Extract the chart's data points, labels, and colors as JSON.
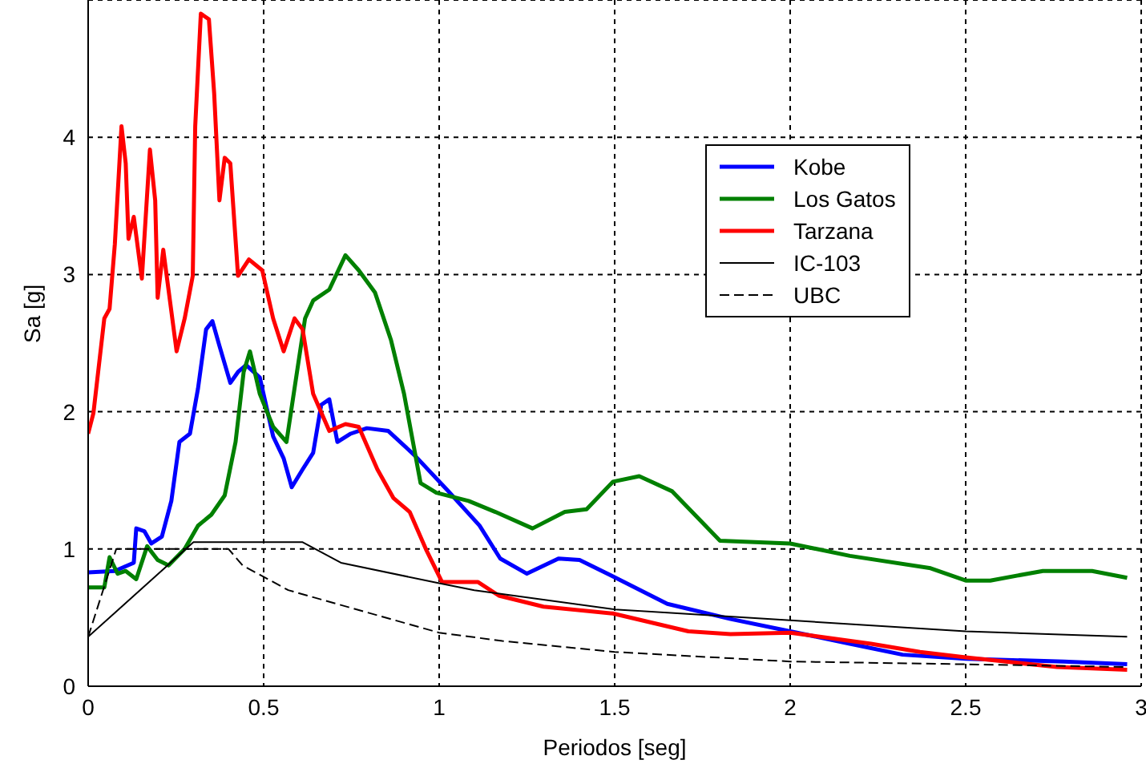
{
  "chart_data": {
    "type": "line",
    "xlabel": "Periodos [seg]",
    "ylabel": "Sa [g]",
    "xlim": [
      0,
      3
    ],
    "xticks": [
      0,
      0.5,
      1,
      1.5,
      2,
      2.5,
      3
    ],
    "ylim": [
      0,
      5
    ],
    "yticks": [
      0,
      1,
      2,
      3,
      4
    ],
    "grid": true,
    "legend": "top right",
    "marker": "none",
    "series": [
      {
        "name": "Kobe",
        "color": "#0000ff",
        "line_style": "solid",
        "x": [
          0,
          0.076,
          0.13,
          0.137,
          0.16,
          0.18,
          0.21,
          0.237,
          0.26,
          0.29,
          0.313,
          0.336,
          0.354,
          0.374,
          0.405,
          0.427,
          0.45,
          0.489,
          0.527,
          0.557,
          0.58,
          0.611,
          0.641,
          0.664,
          0.687,
          0.71,
          0.748,
          0.794,
          0.855,
          0.931,
          1.023,
          1.115,
          1.174,
          1.25,
          1.34,
          1.4,
          1.495,
          1.65,
          1.83,
          2.0,
          2.17,
          2.32,
          2.5,
          2.78,
          2.96
        ],
        "values": [
          0.83,
          0.84,
          0.9,
          1.15,
          1.13,
          1.04,
          1.09,
          1.35,
          1.78,
          1.84,
          2.17,
          2.6,
          2.66,
          2.48,
          2.21,
          2.29,
          2.34,
          2.25,
          1.82,
          1.66,
          1.45,
          1.58,
          1.7,
          2.05,
          2.09,
          1.78,
          1.84,
          1.88,
          1.86,
          1.68,
          1.43,
          1.17,
          0.93,
          0.82,
          0.93,
          0.92,
          0.8,
          0.6,
          0.49,
          0.4,
          0.31,
          0.23,
          0.2,
          0.18,
          0.16
        ]
      },
      {
        "name": "Los Gatos",
        "color": "#008000",
        "line_style": "solid",
        "x": [
          0,
          0.046,
          0.061,
          0.084,
          0.107,
          0.137,
          0.168,
          0.198,
          0.229,
          0.275,
          0.313,
          0.351,
          0.389,
          0.42,
          0.443,
          0.461,
          0.489,
          0.527,
          0.565,
          0.595,
          0.618,
          0.641,
          0.687,
          0.733,
          0.771,
          0.817,
          0.863,
          0.9,
          0.947,
          0.992,
          1.084,
          1.16,
          1.266,
          1.358,
          1.42,
          1.495,
          1.57,
          1.664,
          1.8,
          2.0,
          2.17,
          2.4,
          2.5,
          2.57,
          2.72,
          2.86,
          2.96
        ],
        "values": [
          0.72,
          0.72,
          0.94,
          0.82,
          0.84,
          0.78,
          1.02,
          0.92,
          0.88,
          1.0,
          1.17,
          1.25,
          1.39,
          1.78,
          2.29,
          2.44,
          2.13,
          1.89,
          1.78,
          2.29,
          2.68,
          2.81,
          2.89,
          3.14,
          3.03,
          2.87,
          2.52,
          2.13,
          1.48,
          1.41,
          1.35,
          1.27,
          1.15,
          1.27,
          1.29,
          1.49,
          1.53,
          1.42,
          1.06,
          1.04,
          0.95,
          0.86,
          0.77,
          0.77,
          0.84,
          0.84,
          0.79
        ]
      },
      {
        "name": "Tarzana",
        "color": "#ff0000",
        "line_style": "solid",
        "x": [
          0,
          0.015,
          0.046,
          0.061,
          0.076,
          0.095,
          0.107,
          0.115,
          0.13,
          0.153,
          0.176,
          0.191,
          0.198,
          0.214,
          0.252,
          0.275,
          0.298,
          0.305,
          0.321,
          0.344,
          0.359,
          0.374,
          0.389,
          0.405,
          0.427,
          0.458,
          0.496,
          0.527,
          0.557,
          0.588,
          0.611,
          0.641,
          0.687,
          0.733,
          0.771,
          0.824,
          0.87,
          0.916,
          0.962,
          1.008,
          1.11,
          1.17,
          1.297,
          1.495,
          1.71,
          1.83,
          2.0,
          2.23,
          2.37,
          2.5,
          2.76,
          2.96
        ],
        "values": [
          1.84,
          1.99,
          2.68,
          2.75,
          3.22,
          4.08,
          3.81,
          3.26,
          3.42,
          2.97,
          3.91,
          3.54,
          2.83,
          3.18,
          2.44,
          2.68,
          2.99,
          4.08,
          4.9,
          4.86,
          4.32,
          3.54,
          3.85,
          3.81,
          2.99,
          3.11,
          3.03,
          2.68,
          2.44,
          2.68,
          2.6,
          2.13,
          1.86,
          1.91,
          1.89,
          1.58,
          1.37,
          1.27,
          1.0,
          0.76,
          0.76,
          0.66,
          0.58,
          0.53,
          0.4,
          0.38,
          0.39,
          0.31,
          0.25,
          0.21,
          0.14,
          0.12
        ]
      },
      {
        "name": "IC-103",
        "color": "#000000",
        "line_style": "solid",
        "x": [
          0,
          0.3,
          0.61,
          0.72,
          1.0,
          1.1,
          1.5,
          2.0,
          2.5,
          2.96
        ],
        "values": [
          0.36,
          1.05,
          1.05,
          0.9,
          0.75,
          0.7,
          0.56,
          0.48,
          0.4,
          0.36
        ]
      },
      {
        "name": "UBC",
        "color": "#000000",
        "line_style": "dashed",
        "x": [
          0,
          0.08,
          0.4,
          0.44,
          0.57,
          0.75,
          1.0,
          1.18,
          1.5,
          2.0,
          2.5,
          2.96
        ],
        "values": [
          0.36,
          1.0,
          1.0,
          0.88,
          0.7,
          0.57,
          0.39,
          0.33,
          0.25,
          0.18,
          0.16,
          0.14
        ]
      }
    ]
  }
}
